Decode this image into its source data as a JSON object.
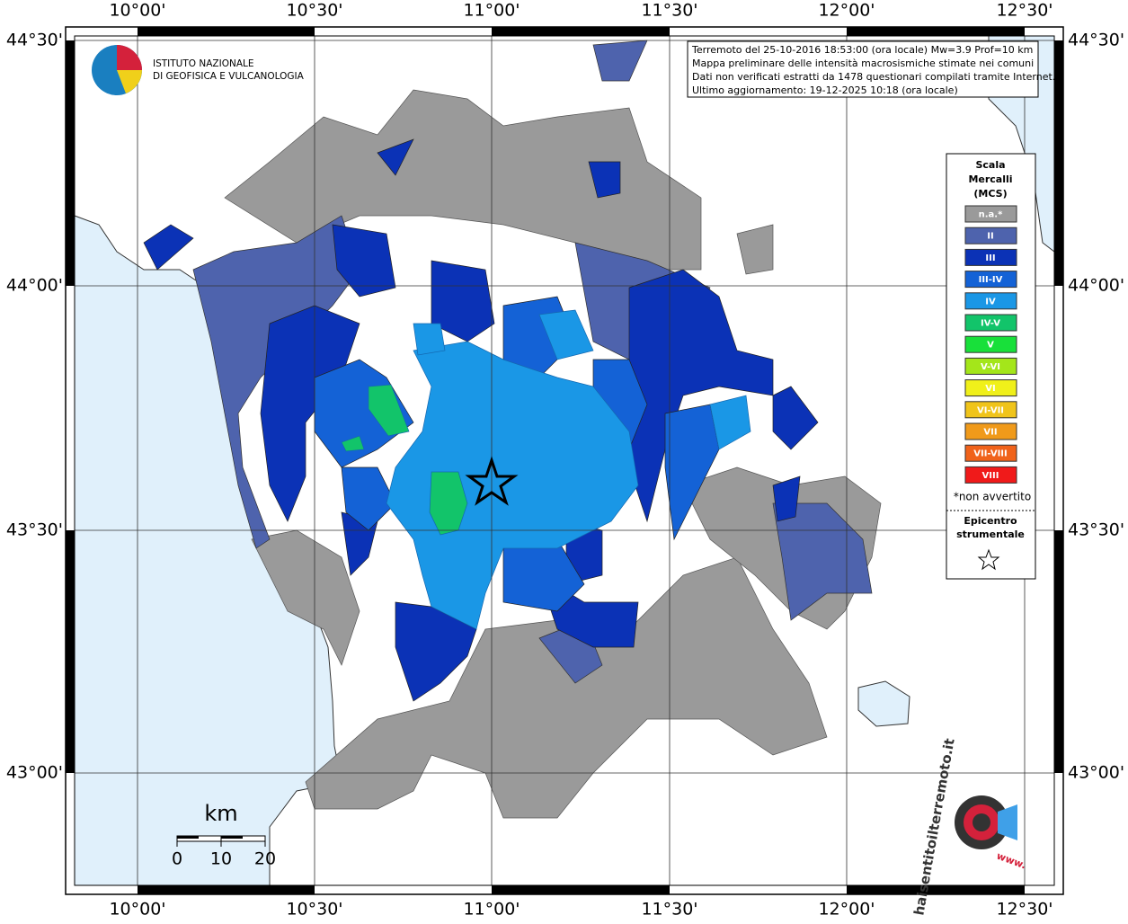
{
  "map": {
    "lon_labels": [
      "10°00'",
      "10°30'",
      "11°00'",
      "11°30'",
      "12°00'",
      "12°30'"
    ],
    "lat_labels": [
      "44°30'",
      "44°00'",
      "43°30'",
      "43°00'"
    ]
  },
  "institute": {
    "line1": "ISTITUTO NAZIONALE",
    "line2": "DI GEOFISICA E VULCANOLOGIA"
  },
  "info": {
    "lines": [
      "Terremoto del 25-10-2016 18:53:00 (ora locale) Mw=3.9 Prof=10 km",
      "Mappa preliminare delle intensità macrosismiche stimate nei comuni",
      "Dati non verificati estratti da 1478 questionari compilati tramite Internet.",
      "Ultimo aggiornamento: 19-12-2025 10:18 (ora locale)"
    ]
  },
  "legend": {
    "title_lines": [
      "Scala",
      "Mercalli",
      "(MCS)"
    ],
    "classes": [
      {
        "label": "n.a.*",
        "color": "#9a9a9a"
      },
      {
        "label": "II",
        "color": "#4e63ad"
      },
      {
        "label": "III",
        "color": "#0b32b6"
      },
      {
        "label": "III-IV",
        "color": "#1462d6"
      },
      {
        "label": "IV",
        "color": "#1a97e6"
      },
      {
        "label": "IV-V",
        "color": "#12c46a"
      },
      {
        "label": "V",
        "color": "#18e03a"
      },
      {
        "label": "V-VI",
        "color": "#a4e61a"
      },
      {
        "label": "VI",
        "color": "#f0f01a"
      },
      {
        "label": "VI-VII",
        "color": "#f0c41a"
      },
      {
        "label": "VII",
        "color": "#f09a1a"
      },
      {
        "label": "VII-VIII",
        "color": "#f0621a"
      },
      {
        "label": "VIII",
        "color": "#f01a1a"
      }
    ],
    "note": "*non avvertito",
    "epicenter_lines": [
      "Epicentro",
      "strumentale"
    ]
  },
  "scale_bar": {
    "unit": "km",
    "ticks": [
      "0",
      "10",
      "20"
    ]
  },
  "logo": {
    "text": "haisentitoilterremoto.it",
    "url": "www."
  }
}
